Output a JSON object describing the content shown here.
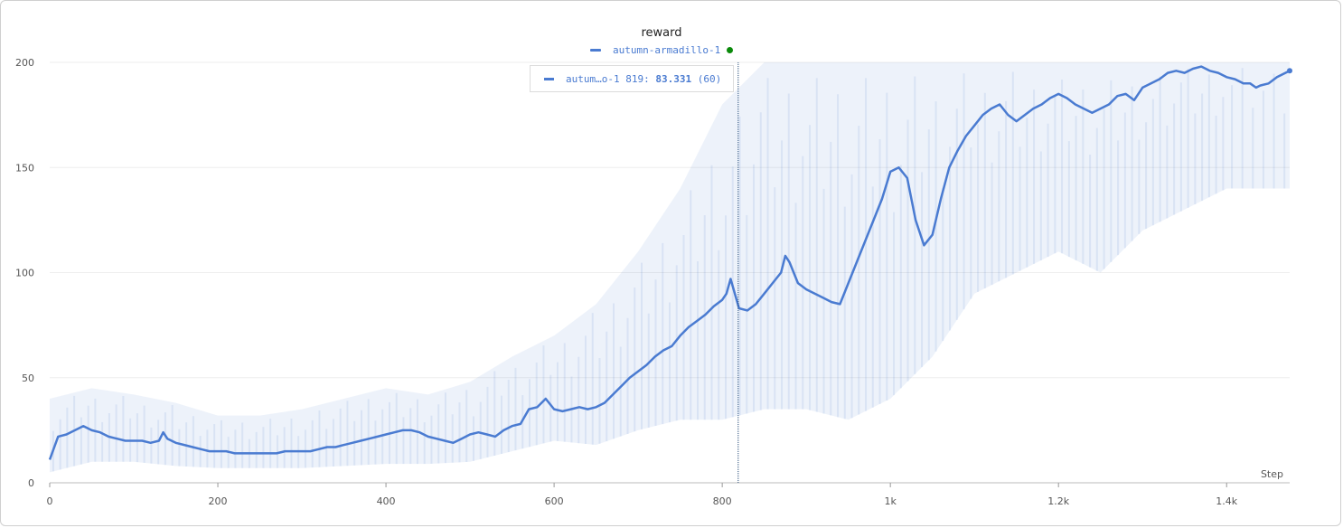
{
  "chart_data": {
    "type": "line",
    "title": "reward",
    "xlabel": "Step",
    "ylabel": "",
    "xlim": [
      0,
      1475
    ],
    "ylim": [
      0,
      200
    ],
    "x_ticks": [
      0,
      200,
      400,
      600,
      800,
      1000,
      1200,
      1400
    ],
    "x_tick_labels": [
      "0",
      "200",
      "400",
      "600",
      "800",
      "1k",
      "1.2k",
      "1.4k"
    ],
    "y_ticks": [
      0,
      50,
      100,
      150,
      200
    ],
    "y_tick_labels": [
      "0",
      "50",
      "100",
      "150",
      "200"
    ],
    "grid": true,
    "legend_position": "top-center",
    "series": [
      {
        "name": "autumn-armadillo-1",
        "color": "#4a7bd1",
        "smoothed": {
          "x": [
            0,
            10,
            20,
            30,
            40,
            50,
            60,
            70,
            80,
            90,
            100,
            110,
            120,
            130,
            135,
            140,
            150,
            160,
            170,
            180,
            190,
            200,
            210,
            220,
            230,
            240,
            250,
            260,
            270,
            280,
            290,
            300,
            310,
            320,
            330,
            340,
            350,
            360,
            370,
            380,
            390,
            400,
            410,
            420,
            430,
            440,
            450,
            460,
            470,
            480,
            490,
            500,
            510,
            520,
            530,
            540,
            550,
            560,
            570,
            580,
            590,
            600,
            610,
            620,
            630,
            640,
            650,
            660,
            670,
            680,
            690,
            700,
            710,
            720,
            730,
            740,
            750,
            760,
            770,
            780,
            790,
            800,
            805,
            810,
            820,
            830,
            840,
            850,
            860,
            870,
            875,
            880,
            890,
            900,
            910,
            920,
            930,
            940,
            950,
            960,
            970,
            980,
            990,
            1000,
            1010,
            1020,
            1030,
            1040,
            1050,
            1060,
            1070,
            1080,
            1090,
            1100,
            1110,
            1120,
            1130,
            1140,
            1150,
            1160,
            1170,
            1180,
            1190,
            1200,
            1210,
            1220,
            1230,
            1240,
            1250,
            1260,
            1270,
            1280,
            1290,
            1300,
            1310,
            1320,
            1330,
            1340,
            1350,
            1360,
            1370,
            1380,
            1390,
            1400,
            1410,
            1420,
            1428,
            1435,
            1440,
            1450,
            1460,
            1470,
            1475
          ],
          "y": [
            11,
            22,
            23,
            25,
            27,
            25,
            24,
            22,
            21,
            20,
            20,
            20,
            19,
            20,
            24,
            21,
            19,
            18,
            17,
            16,
            15,
            15,
            15,
            14,
            14,
            14,
            14,
            14,
            14,
            15,
            15,
            15,
            15,
            16,
            17,
            17,
            18,
            19,
            20,
            21,
            22,
            23,
            24,
            25,
            25,
            24,
            22,
            21,
            20,
            19,
            21,
            23,
            24,
            23,
            22,
            25,
            27,
            28,
            35,
            36,
            40,
            35,
            34,
            35,
            36,
            35,
            36,
            38,
            42,
            46,
            50,
            53,
            56,
            60,
            63,
            65,
            70,
            74,
            77,
            80,
            84,
            87,
            90,
            97,
            83,
            82,
            85,
            90,
            95,
            100,
            108,
            105,
            95,
            92,
            90,
            88,
            86,
            85,
            95,
            105,
            115,
            125,
            135,
            148,
            150,
            145,
            125,
            113,
            118,
            135,
            150,
            158,
            165,
            170,
            175,
            178,
            180,
            175,
            172,
            175,
            178,
            180,
            183,
            185,
            183,
            180,
            178,
            176,
            178,
            180,
            184,
            185,
            182,
            188,
            190,
            192,
            195,
            196,
            195,
            197,
            198,
            196,
            195,
            193,
            192,
            190,
            190,
            188,
            189,
            190,
            193,
            195,
            196
          ],
          "x_for_last_points_note": ""
        },
        "raw_band": {
          "x": [
            0,
            50,
            100,
            150,
            200,
            250,
            300,
            350,
            400,
            450,
            500,
            550,
            600,
            650,
            700,
            750,
            800,
            850,
            900,
            950,
            1000,
            1050,
            1100,
            1150,
            1200,
            1250,
            1300,
            1350,
            1400,
            1475
          ],
          "low": [
            5,
            10,
            10,
            8,
            7,
            7,
            7,
            8,
            9,
            9,
            10,
            15,
            20,
            18,
            25,
            30,
            30,
            35,
            35,
            30,
            40,
            60,
            90,
            100,
            110,
            100,
            120,
            130,
            140,
            140
          ],
          "high": [
            40,
            45,
            42,
            38,
            32,
            32,
            35,
            40,
            45,
            42,
            48,
            60,
            70,
            85,
            110,
            140,
            180,
            200,
            200,
            200,
            200,
            200,
            200,
            200,
            200,
            200,
            200,
            200,
            200,
            200
          ]
        }
      }
    ],
    "hover": {
      "step": 819,
      "label": "autum…o-1 819:",
      "value": "83.331",
      "count": "(60)"
    }
  }
}
